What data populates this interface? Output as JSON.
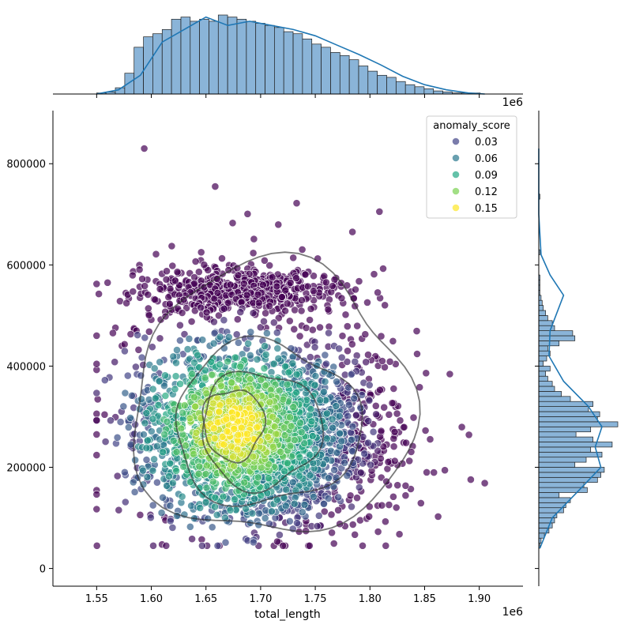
{
  "chart_data": {
    "type": "scatter",
    "subtype": "jointplot",
    "x_label": "total_length",
    "y_label": "",
    "x_ticks": [
      "1.55",
      "1.60",
      "1.65",
      "1.70",
      "1.75",
      "1.80",
      "1.85",
      "1.90"
    ],
    "x_tick_values": [
      1.55,
      1.6,
      1.65,
      1.7,
      1.75,
      1.8,
      1.85,
      1.9
    ],
    "x_offset_label": "1e6",
    "top_offset_label": "1e6",
    "y_ticks": [
      "0",
      "200000",
      "400000",
      "600000",
      "800000"
    ],
    "y_tick_values": [
      0,
      200000,
      400000,
      600000,
      800000
    ],
    "xlim": [
      1.51,
      1.94
    ],
    "ylim": [
      -35000,
      905000
    ],
    "legend": {
      "title": "anomaly_score",
      "position": "top-right",
      "entries": [
        {
          "label": "0.03",
          "color": "#414487"
        },
        {
          "label": "0.06",
          "color": "#2a788e"
        },
        {
          "label": "0.09",
          "color": "#22a884"
        },
        {
          "label": "0.12",
          "color": "#7ad151"
        },
        {
          "label": "0.15",
          "color": "#fde725"
        }
      ]
    },
    "colormap": [
      "#440154",
      "#414487",
      "#2a788e",
      "#22a884",
      "#7ad151",
      "#fde725"
    ],
    "marker_opacity": 0.7,
    "point_count": 3400,
    "seed": 7,
    "kde_contours": [
      {
        "cx": 1.675,
        "cy": 285000,
        "rx": 0.028,
        "ry": 70000
      },
      {
        "cx": 1.7,
        "cy": 275000,
        "rx": 0.055,
        "ry": 115000
      },
      {
        "cx": 1.705,
        "cy": 285000,
        "rx": 0.085,
        "ry": 160000
      },
      {
        "cx": 1.71,
        "cy": 330000,
        "rx": 0.128,
        "ry": 270000
      }
    ],
    "top_histogram": {
      "bin_edges_start": 1.55,
      "bin_width": 0.00856,
      "counts": [
        1,
        2,
        6,
        20,
        45,
        55,
        58,
        62,
        72,
        74,
        70,
        72,
        70,
        76,
        74,
        72,
        70,
        68,
        66,
        64,
        60,
        58,
        53,
        48,
        45,
        40,
        37,
        33,
        27,
        22,
        18,
        16,
        12,
        9,
        7,
        5,
        3,
        2,
        1,
        1,
        1
      ],
      "kde": [
        [
          1.55,
          0
        ],
        [
          1.57,
          4
        ],
        [
          1.59,
          18
        ],
        [
          1.61,
          50
        ],
        [
          1.63,
          62
        ],
        [
          1.65,
          74
        ],
        [
          1.67,
          66
        ],
        [
          1.69,
          70
        ],
        [
          1.71,
          66
        ],
        [
          1.73,
          62
        ],
        [
          1.75,
          56
        ],
        [
          1.77,
          47
        ],
        [
          1.79,
          38
        ],
        [
          1.81,
          28
        ],
        [
          1.83,
          17
        ],
        [
          1.85,
          9
        ],
        [
          1.87,
          4
        ],
        [
          1.89,
          1
        ],
        [
          1.905,
          0
        ]
      ]
    },
    "right_histogram": {
      "bin_edges_start": 40000,
      "bin_width": 10000,
      "counts": [
        1,
        2,
        5,
        9,
        12,
        14,
        16,
        22,
        24,
        28,
        18,
        43,
        40,
        52,
        55,
        58,
        32,
        42,
        56,
        46,
        65,
        48,
        33,
        46,
        70,
        52,
        54,
        44,
        48,
        28,
        20,
        14,
        12,
        8,
        6,
        10,
        4,
        7,
        10,
        8,
        18,
        32,
        30,
        14,
        12,
        8,
        6,
        4,
        3,
        2,
        1,
        1,
        1,
        1,
        0,
        0,
        0,
        0,
        1,
        0,
        0,
        0,
        0,
        0,
        0,
        0,
        0,
        0,
        0,
        1,
        0,
        0,
        0,
        0,
        0,
        0,
        0,
        0,
        0,
        0
      ],
      "kde": [
        [
          40000,
          1
        ],
        [
          100000,
          12
        ],
        [
          160000,
          38
        ],
        [
          200000,
          55
        ],
        [
          240000,
          50
        ],
        [
          280000,
          56
        ],
        [
          320000,
          44
        ],
        [
          370000,
          22
        ],
        [
          420000,
          9
        ],
        [
          470000,
          10
        ],
        [
          540000,
          22
        ],
        [
          580000,
          10
        ],
        [
          620000,
          2
        ],
        [
          700000,
          0
        ],
        [
          830000,
          0
        ]
      ]
    }
  }
}
